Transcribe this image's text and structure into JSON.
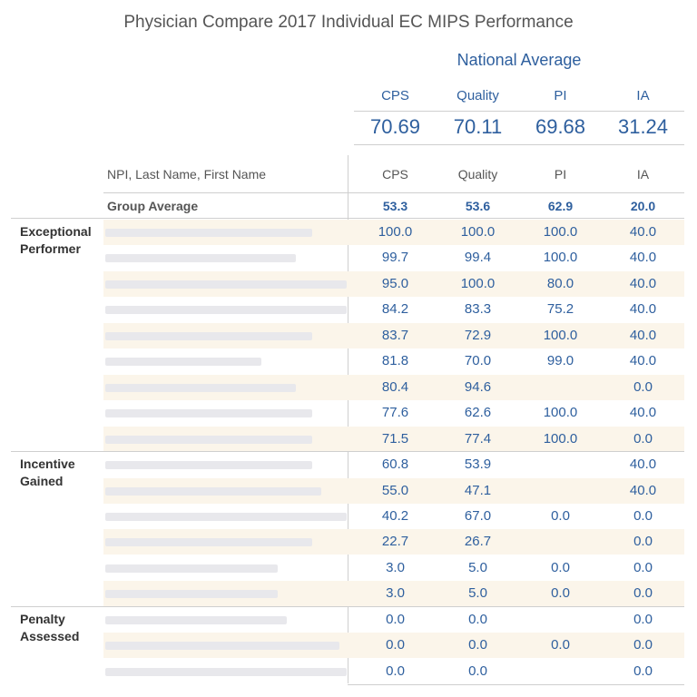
{
  "title": "Physician Compare 2017 Individual EC MIPS Performance",
  "national": {
    "title": "National Average",
    "headers": [
      "CPS",
      "Quality",
      "PI",
      "IA"
    ],
    "values": [
      "70.69",
      "70.11",
      "69.68",
      "31.24"
    ]
  },
  "table": {
    "name_header": "NPI, Last Name, First Name",
    "headers": [
      "CPS",
      "Quality",
      "PI",
      "IA"
    ],
    "group": {
      "label": "Group Average",
      "values": [
        "53.3",
        "53.6",
        "62.9",
        "20.0"
      ]
    },
    "categories": [
      {
        "label_lines": [
          "Exceptional",
          "Performer"
        ]
      },
      {
        "label_lines": [
          "Incentive",
          "Gained"
        ]
      },
      {
        "label_lines": [
          "Penalty",
          "Assessed"
        ]
      }
    ]
  },
  "chart_data": {
    "type": "table",
    "title": "Physician Compare 2017 Individual EC MIPS Performance",
    "columns": [
      "CPS",
      "Quality",
      "PI",
      "IA"
    ],
    "national_average": {
      "CPS": 70.69,
      "Quality": 70.11,
      "PI": 69.68,
      "IA": 31.24
    },
    "group_average": {
      "CPS": 53.3,
      "Quality": 53.6,
      "PI": 62.9,
      "IA": 20.0
    },
    "groups": [
      {
        "category": "Exceptional Performer",
        "rows": [
          [
            "100.0",
            "100.0",
            "100.0",
            "40.0"
          ],
          [
            "99.7",
            "99.4",
            "100.0",
            "40.0"
          ],
          [
            "95.0",
            "100.0",
            "80.0",
            "40.0"
          ],
          [
            "84.2",
            "83.3",
            "75.2",
            "40.0"
          ],
          [
            "83.7",
            "72.9",
            "100.0",
            "40.0"
          ],
          [
            "81.8",
            "70.0",
            "99.0",
            "40.0"
          ],
          [
            "80.4",
            "94.6",
            "",
            "0.0"
          ],
          [
            "77.6",
            "62.6",
            "100.0",
            "40.0"
          ],
          [
            "71.5",
            "77.4",
            "100.0",
            "0.0"
          ]
        ]
      },
      {
        "category": "Incentive Gained",
        "rows": [
          [
            "60.8",
            "53.9",
            "",
            "40.0"
          ],
          [
            "55.0",
            "47.1",
            "",
            "40.0"
          ],
          [
            "40.2",
            "67.0",
            "0.0",
            "0.0"
          ],
          [
            "22.7",
            "26.7",
            "",
            "0.0"
          ],
          [
            "3.0",
            "5.0",
            "0.0",
            "0.0"
          ],
          [
            "3.0",
            "5.0",
            "0.0",
            "0.0"
          ]
        ]
      },
      {
        "category": "Penalty Assessed",
        "rows": [
          [
            "0.0",
            "0.0",
            "",
            "0.0"
          ],
          [
            "0.0",
            "0.0",
            "0.0",
            "0.0"
          ],
          [
            "0.0",
            "0.0",
            "",
            "0.0"
          ]
        ]
      }
    ]
  }
}
